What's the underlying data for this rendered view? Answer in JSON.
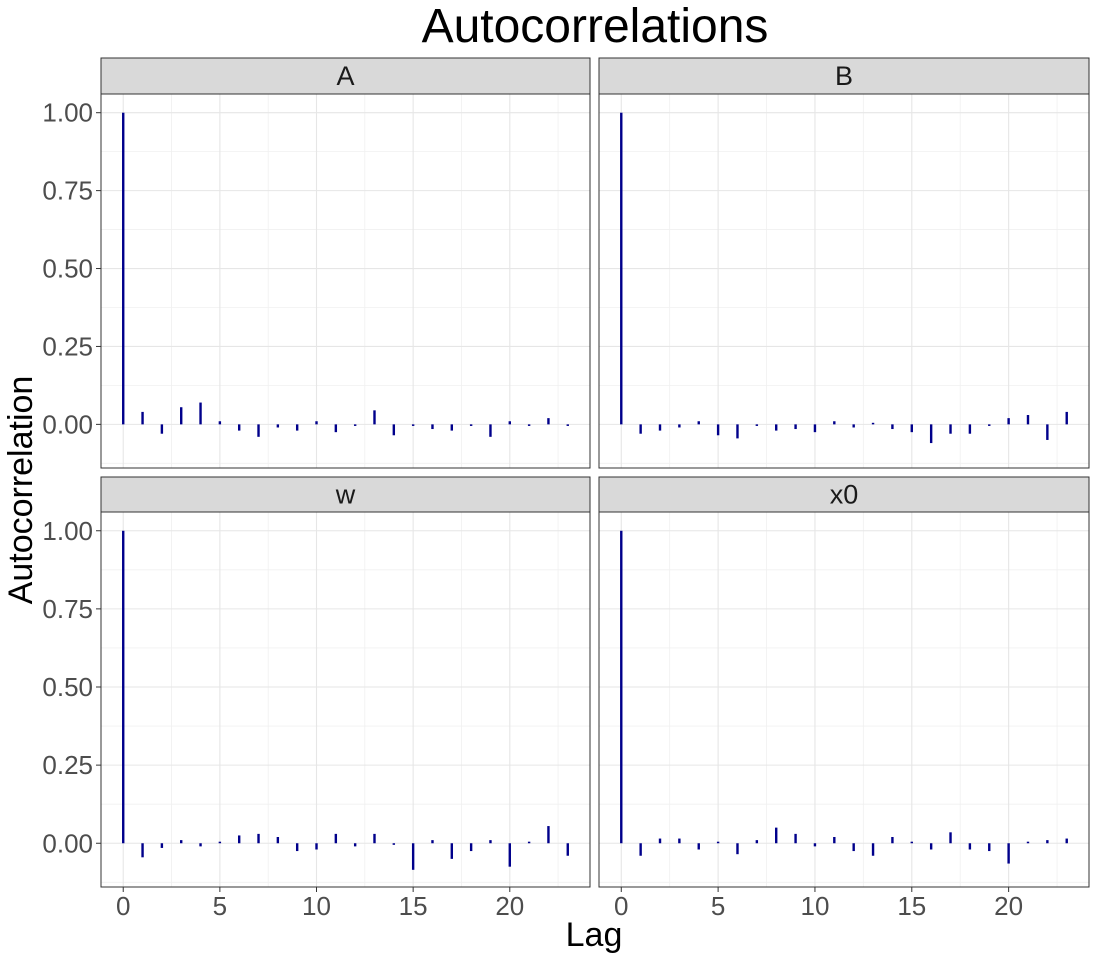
{
  "chart_data": {
    "type": "bar",
    "title": "Autocorrelations",
    "xlabel": "Lag",
    "ylabel": "Autocorrelation",
    "xlim": [
      -1.15,
      24.15
    ],
    "ylim": [
      -0.14,
      1.06
    ],
    "x_ticks": [
      0,
      5,
      10,
      15,
      20
    ],
    "x_tick_labels": [
      "0",
      "5",
      "10",
      "15",
      "20"
    ],
    "y_ticks": [
      0,
      0.25,
      0.5,
      0.75,
      1.0
    ],
    "y_tick_labels": [
      "0.00",
      "0.25",
      "0.50",
      "0.75",
      "1.00"
    ],
    "grid": true,
    "bar_color": "#00008b",
    "strip_fill": "#d9d9d9",
    "facets": [
      {
        "name": "A",
        "lags": [
          0,
          1,
          2,
          3,
          4,
          5,
          6,
          7,
          8,
          9,
          10,
          11,
          12,
          13,
          14,
          15,
          16,
          17,
          18,
          19,
          20,
          21,
          22,
          23
        ],
        "values": [
          1.0,
          0.04,
          -0.03,
          0.055,
          0.07,
          0.01,
          -0.02,
          -0.04,
          -0.01,
          -0.02,
          0.01,
          -0.025,
          -0.005,
          0.045,
          -0.035,
          -0.005,
          -0.015,
          -0.02,
          -0.005,
          -0.04,
          0.01,
          -0.005,
          0.02,
          -0.005
        ]
      },
      {
        "name": "B",
        "lags": [
          0,
          1,
          2,
          3,
          4,
          5,
          6,
          7,
          8,
          9,
          10,
          11,
          12,
          13,
          14,
          15,
          16,
          17,
          18,
          19,
          20,
          21,
          22,
          23
        ],
        "values": [
          1.0,
          -0.03,
          -0.02,
          -0.01,
          0.01,
          -0.035,
          -0.045,
          -0.005,
          -0.02,
          -0.015,
          -0.025,
          0.01,
          -0.01,
          0.005,
          -0.015,
          -0.025,
          -0.06,
          -0.03,
          -0.03,
          -0.005,
          0.02,
          0.03,
          -0.05,
          0.04
        ]
      },
      {
        "name": "w",
        "lags": [
          0,
          1,
          2,
          3,
          4,
          5,
          6,
          7,
          8,
          9,
          10,
          11,
          12,
          13,
          14,
          15,
          16,
          17,
          18,
          19,
          20,
          21,
          22,
          23
        ],
        "values": [
          1.0,
          -0.045,
          -0.015,
          0.01,
          -0.01,
          0.005,
          0.025,
          0.03,
          0.02,
          -0.025,
          -0.02,
          0.03,
          -0.01,
          0.03,
          -0.005,
          -0.085,
          0.01,
          -0.05,
          -0.025,
          0.01,
          -0.075,
          0.005,
          0.055,
          -0.04
        ]
      },
      {
        "name": "x0",
        "lags": [
          0,
          1,
          2,
          3,
          4,
          5,
          6,
          7,
          8,
          9,
          10,
          11,
          12,
          13,
          14,
          15,
          16,
          17,
          18,
          19,
          20,
          21,
          22,
          23
        ],
        "values": [
          1.0,
          -0.04,
          0.015,
          0.015,
          -0.02,
          0.005,
          -0.035,
          0.01,
          0.05,
          0.03,
          -0.01,
          0.02,
          -0.025,
          -0.04,
          0.02,
          0.005,
          -0.02,
          0.035,
          -0.02,
          -0.025,
          -0.065,
          0.005,
          0.01,
          0.015
        ]
      }
    ]
  }
}
